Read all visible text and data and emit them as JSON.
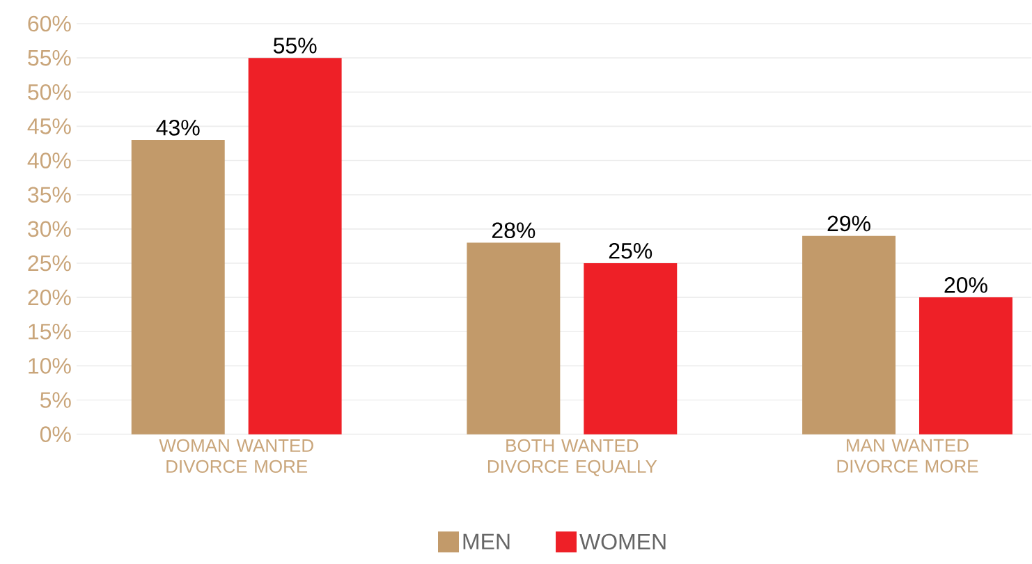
{
  "chart_data": {
    "type": "bar",
    "categories": [
      "WOMAN WANTED DIVORCE MORE",
      "BOTH WANTED DIVORCE EQUALLY",
      "MAN WANTED DIVORCE MORE"
    ],
    "series": [
      {
        "name": "MEN",
        "color": "#c29a6a",
        "values": [
          43,
          28,
          29
        ],
        "value_labels": [
          "43%",
          "28%",
          "29%"
        ]
      },
      {
        "name": "WOMEN",
        "color": "#ee2027",
        "values": [
          55,
          25,
          20
        ],
        "value_labels": [
          "55%",
          "25%",
          "20%"
        ]
      }
    ],
    "ylim": [
      0,
      60
    ],
    "yticks": [
      {
        "value": 0,
        "label": "0%"
      },
      {
        "value": 5,
        "label": "5%"
      },
      {
        "value": 10,
        "label": "10%"
      },
      {
        "value": 15,
        "label": "15%"
      },
      {
        "value": 20,
        "label": "20%"
      },
      {
        "value": 25,
        "label": "25%"
      },
      {
        "value": 30,
        "label": "30%"
      },
      {
        "value": 35,
        "label": "35%"
      },
      {
        "value": 40,
        "label": "40%"
      },
      {
        "value": 45,
        "label": "45%"
      },
      {
        "value": 50,
        "label": "50%"
      },
      {
        "value": 55,
        "label": "55%"
      },
      {
        "value": 60,
        "label": "60%"
      }
    ],
    "grid": "y",
    "legend": "bottom"
  }
}
